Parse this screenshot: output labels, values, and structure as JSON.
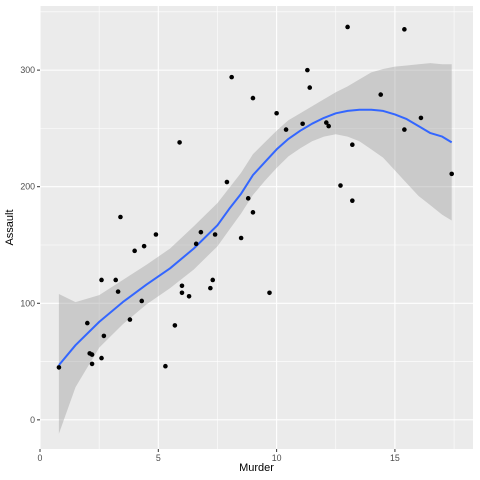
{
  "chart_data": {
    "type": "scatter",
    "xlabel": "Murder",
    "ylabel": "Assault",
    "xlim": [
      0,
      18.3
    ],
    "ylim": [
      -25,
      355
    ],
    "x_ticks": [
      0,
      5,
      10,
      15
    ],
    "y_ticks": [
      0,
      100,
      200,
      300
    ],
    "x_tick_labels": [
      "0",
      "5",
      "10",
      "15"
    ],
    "y_tick_labels": [
      "0",
      "100",
      "200",
      "300"
    ],
    "grid": true,
    "colors": {
      "panel": "#EBEBEB",
      "grid": "#FFFFFF",
      "points": "#000000",
      "smooth_line": "#3366FF",
      "ribbon": "#999999"
    },
    "points": [
      {
        "x": 0.8,
        "y": 45
      },
      {
        "x": 2.0,
        "y": 83
      },
      {
        "x": 2.1,
        "y": 57
      },
      {
        "x": 2.2,
        "y": 56
      },
      {
        "x": 2.2,
        "y": 48
      },
      {
        "x": 2.6,
        "y": 120
      },
      {
        "x": 2.6,
        "y": 53
      },
      {
        "x": 2.7,
        "y": 72
      },
      {
        "x": 3.2,
        "y": 120
      },
      {
        "x": 3.3,
        "y": 110
      },
      {
        "x": 3.4,
        "y": 174
      },
      {
        "x": 3.8,
        "y": 86
      },
      {
        "x": 4.0,
        "y": 145
      },
      {
        "x": 4.3,
        "y": 102
      },
      {
        "x": 4.4,
        "y": 149
      },
      {
        "x": 4.9,
        "y": 159
      },
      {
        "x": 5.3,
        "y": 46
      },
      {
        "x": 5.7,
        "y": 81
      },
      {
        "x": 5.9,
        "y": 238
      },
      {
        "x": 6.0,
        "y": 109
      },
      {
        "x": 6.0,
        "y": 115
      },
      {
        "x": 6.3,
        "y": 106
      },
      {
        "x": 6.6,
        "y": 151
      },
      {
        "x": 6.8,
        "y": 161
      },
      {
        "x": 7.2,
        "y": 113
      },
      {
        "x": 7.3,
        "y": 120
      },
      {
        "x": 7.4,
        "y": 159
      },
      {
        "x": 7.9,
        "y": 204
      },
      {
        "x": 8.1,
        "y": 294
      },
      {
        "x": 8.5,
        "y": 156
      },
      {
        "x": 8.8,
        "y": 190
      },
      {
        "x": 9.0,
        "y": 276
      },
      {
        "x": 9.0,
        "y": 178
      },
      {
        "x": 9.7,
        "y": 109
      },
      {
        "x": 10.0,
        "y": 263
      },
      {
        "x": 10.4,
        "y": 249
      },
      {
        "x": 11.1,
        "y": 254
      },
      {
        "x": 11.3,
        "y": 300
      },
      {
        "x": 11.4,
        "y": 285
      },
      {
        "x": 12.1,
        "y": 255
      },
      {
        "x": 12.2,
        "y": 252
      },
      {
        "x": 12.7,
        "y": 201
      },
      {
        "x": 13.0,
        "y": 337
      },
      {
        "x": 13.2,
        "y": 236
      },
      {
        "x": 13.2,
        "y": 188
      },
      {
        "x": 14.4,
        "y": 279
      },
      {
        "x": 15.4,
        "y": 249
      },
      {
        "x": 15.4,
        "y": 335
      },
      {
        "x": 16.1,
        "y": 259
      },
      {
        "x": 17.4,
        "y": 211
      }
    ],
    "smooth": {
      "method": "loess",
      "x": [
        0.8,
        1.5,
        2.5,
        3.5,
        4.5,
        5.5,
        6.5,
        7.5,
        8.0,
        8.5,
        9.0,
        9.5,
        10.0,
        10.5,
        11.0,
        11.5,
        12.0,
        12.5,
        13.0,
        13.5,
        14.0,
        14.5,
        15.0,
        15.5,
        16.0,
        16.5,
        17.0,
        17.4
      ],
      "y": [
        47,
        64,
        84,
        101,
        116,
        130,
        147,
        167,
        181,
        194,
        210,
        221,
        232,
        241,
        248,
        254,
        259,
        263,
        265,
        266,
        266,
        265,
        262,
        258,
        252,
        246,
        243,
        238
      ],
      "lower": [
        -12,
        28,
        62,
        82,
        99,
        113,
        129,
        149,
        163,
        177,
        193,
        205,
        216,
        226,
        233,
        239,
        243,
        245,
        243,
        239,
        232,
        225,
        214,
        203,
        192,
        184,
        176,
        171
      ],
      "upper": [
        108,
        101,
        107,
        120,
        133,
        147,
        166,
        186,
        199,
        212,
        228,
        238,
        248,
        257,
        263,
        269,
        275,
        281,
        286,
        292,
        298,
        301,
        303,
        304,
        305,
        306,
        305,
        305
      ]
    }
  }
}
